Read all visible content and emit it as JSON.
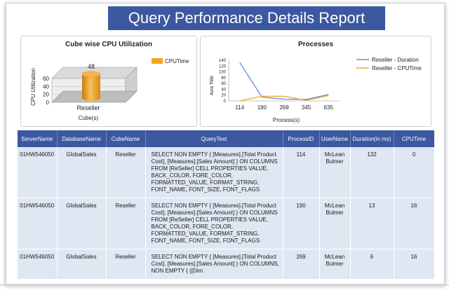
{
  "report": {
    "title": "Query Performance Details Report"
  },
  "colors": {
    "header": "#3c58a0",
    "cpu": "#f5a623",
    "duration": "#5b8fd6",
    "row_bg": "#dfe7f3"
  },
  "chart_data": [
    {
      "type": "bar",
      "title": "Cube wise CPU Utilization",
      "xlabel": "Cube(s)",
      "ylabel": "CPU Utilization",
      "categories": [
        "Reseller"
      ],
      "series": [
        {
          "name": "CPUTime",
          "values": [
            48
          ]
        }
      ],
      "data_labels": [
        "48"
      ],
      "ylim": [
        0,
        60
      ],
      "yticks": [
        "0",
        "20",
        "40",
        "60"
      ],
      "legend": "top-right"
    },
    {
      "type": "line",
      "title": "Processes",
      "xlabel": "Process(s)",
      "ylabel": "Axis Title",
      "categories": [
        "114",
        "190",
        "269",
        "345",
        "635"
      ],
      "series": [
        {
          "name": "Reseller - Duration",
          "values": [
            132,
            13,
            6,
            5,
            22
          ]
        },
        {
          "name": "Reseller - CPUTime",
          "values": [
            0,
            16,
            16,
            2,
            18
          ]
        }
      ],
      "ylim": [
        0,
        140
      ],
      "yticks": [
        "0",
        "20",
        "40",
        "60",
        "80",
        "100",
        "120",
        "140"
      ],
      "legend": "right"
    }
  ],
  "table": {
    "columns": [
      "ServerName",
      "DatabaseName",
      "CubeName",
      "QueryText",
      "ProcessID",
      "UserName",
      "Duration(in ms)",
      "CPUTime"
    ],
    "rows": [
      [
        "01HW546050",
        "GlobalSales",
        "Reseller",
        "SELECT NON EMPTY { [Measures].[Total Product Cost], [Measures].[Sales Amount] } ON COLUMNS FROM [ReSeller] CELL PROPERTIES VALUE, BACK_COLOR, FORE_COLOR, FORMATTED_VALUE, FORMAT_STRING, FONT_NAME, FONT_SIZE, FONT_FLAGS",
        "114",
        "McLean Bulmer",
        "132",
        "0"
      ],
      [
        "01HW546050",
        "GlobalSales",
        "Reseller",
        "SELECT NON EMPTY { [Measures].[Total Product Cost], [Measures].[Sales Amount] } ON COLUMNS FROM [ReSeller] CELL PROPERTIES VALUE, BACK_COLOR, FORE_COLOR, FORMATTED_VALUE, FORMAT_STRING, FONT_NAME, FONT_SIZE, FONT_FLAGS",
        "190",
        "McLean Bulmer",
        "13",
        "16"
      ],
      [
        "01HW546050",
        "GlobalSales",
        "Reseller",
        "SELECT NON EMPTY { [Measures].[Total Product Cost], [Measures].[Sales Amount] } ON COLUMNS, NON EMPTY { ([Dim",
        "269",
        "McLean Bulmer",
        "6",
        "16"
      ]
    ]
  }
}
